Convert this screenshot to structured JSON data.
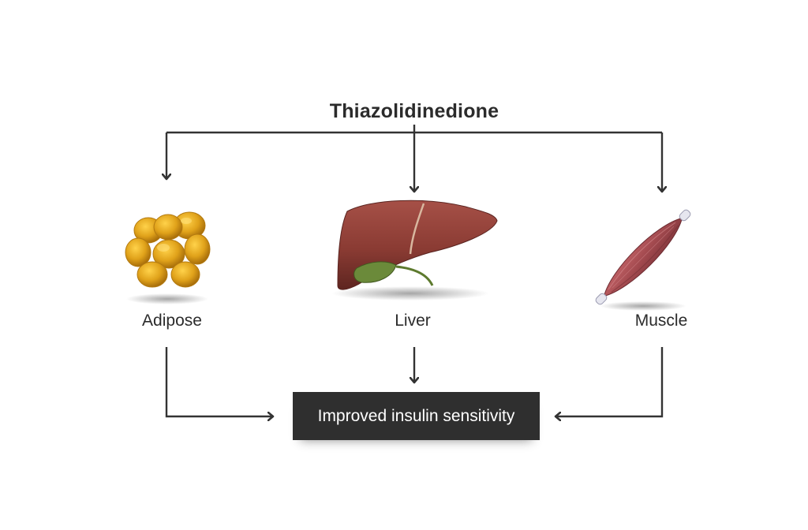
{
  "diagram": {
    "title": "Thiazolidinedione",
    "organs": [
      {
        "label": "Adipose",
        "icon": "adipose-tissue-icon"
      },
      {
        "label": "Liver",
        "icon": "liver-icon"
      },
      {
        "label": "Muscle",
        "icon": "muscle-icon"
      }
    ],
    "outcome": "Improved insulin sensitivity"
  },
  "colors": {
    "text": "#2b2b2b",
    "arrow": "#333333",
    "outcome_box": "#2f2f2f",
    "adipose": "#e0a21a",
    "liver": "#8a3b33",
    "gallbladder": "#6b8a3a",
    "muscle": "#a34a4f"
  }
}
